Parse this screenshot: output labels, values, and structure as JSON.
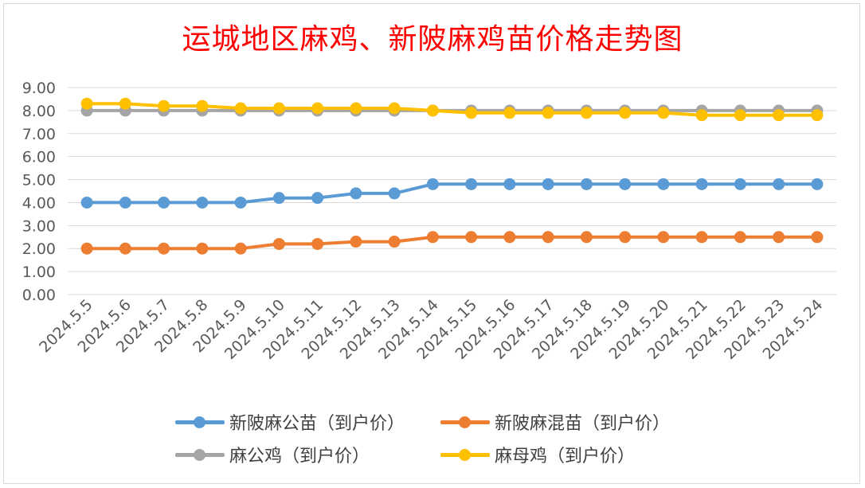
{
  "chart_data": {
    "type": "line",
    "title": "运城地区麻鸡、新陂麻鸡苗价格走势图",
    "categories": [
      "2024.5.5",
      "2024.5.6",
      "2024.5.7",
      "2024.5.8",
      "2024.5.9",
      "2024.5.10",
      "2024.5.11",
      "2024.5.12",
      "2024.5.13",
      "2024.5.14",
      "2024.5.15",
      "2024.5.16",
      "2024.5.17",
      "2024.5.18",
      "2024.5.19",
      "2024.5.20",
      "2024.5.21",
      "2024.5.22",
      "2024.5.23",
      "2024.5.24"
    ],
    "ylim": [
      0,
      9
    ],
    "yticks": [
      "0.00",
      "1.00",
      "2.00",
      "3.00",
      "4.00",
      "5.00",
      "6.00",
      "7.00",
      "8.00",
      "9.00"
    ],
    "grid": true,
    "legend_position": "bottom",
    "series": [
      {
        "name": "新陂麻公苗（到户价）",
        "color": "#5b9bd5",
        "values": [
          4.0,
          4.0,
          4.0,
          4.0,
          4.0,
          4.2,
          4.2,
          4.4,
          4.4,
          4.8,
          4.8,
          4.8,
          4.8,
          4.8,
          4.8,
          4.8,
          4.8,
          4.8,
          4.8,
          4.8
        ]
      },
      {
        "name": "新陂麻混苗（到户价）",
        "color": "#ed7d31",
        "values": [
          2.0,
          2.0,
          2.0,
          2.0,
          2.0,
          2.2,
          2.2,
          2.3,
          2.3,
          2.5,
          2.5,
          2.5,
          2.5,
          2.5,
          2.5,
          2.5,
          2.5,
          2.5,
          2.5,
          2.5
        ]
      },
      {
        "name": "麻公鸡（到户价）",
        "color": "#a5a5a5",
        "values": [
          8.0,
          8.0,
          8.0,
          8.0,
          8.0,
          8.0,
          8.0,
          8.0,
          8.0,
          8.0,
          8.0,
          8.0,
          8.0,
          8.0,
          8.0,
          8.0,
          8.0,
          8.0,
          8.0,
          8.0
        ]
      },
      {
        "name": "麻母鸡（到户价）",
        "color": "#ffc000",
        "values": [
          8.3,
          8.3,
          8.2,
          8.2,
          8.1,
          8.1,
          8.1,
          8.1,
          8.1,
          8.0,
          7.9,
          7.9,
          7.9,
          7.9,
          7.9,
          7.9,
          7.8,
          7.8,
          7.8,
          7.8
        ]
      }
    ]
  }
}
